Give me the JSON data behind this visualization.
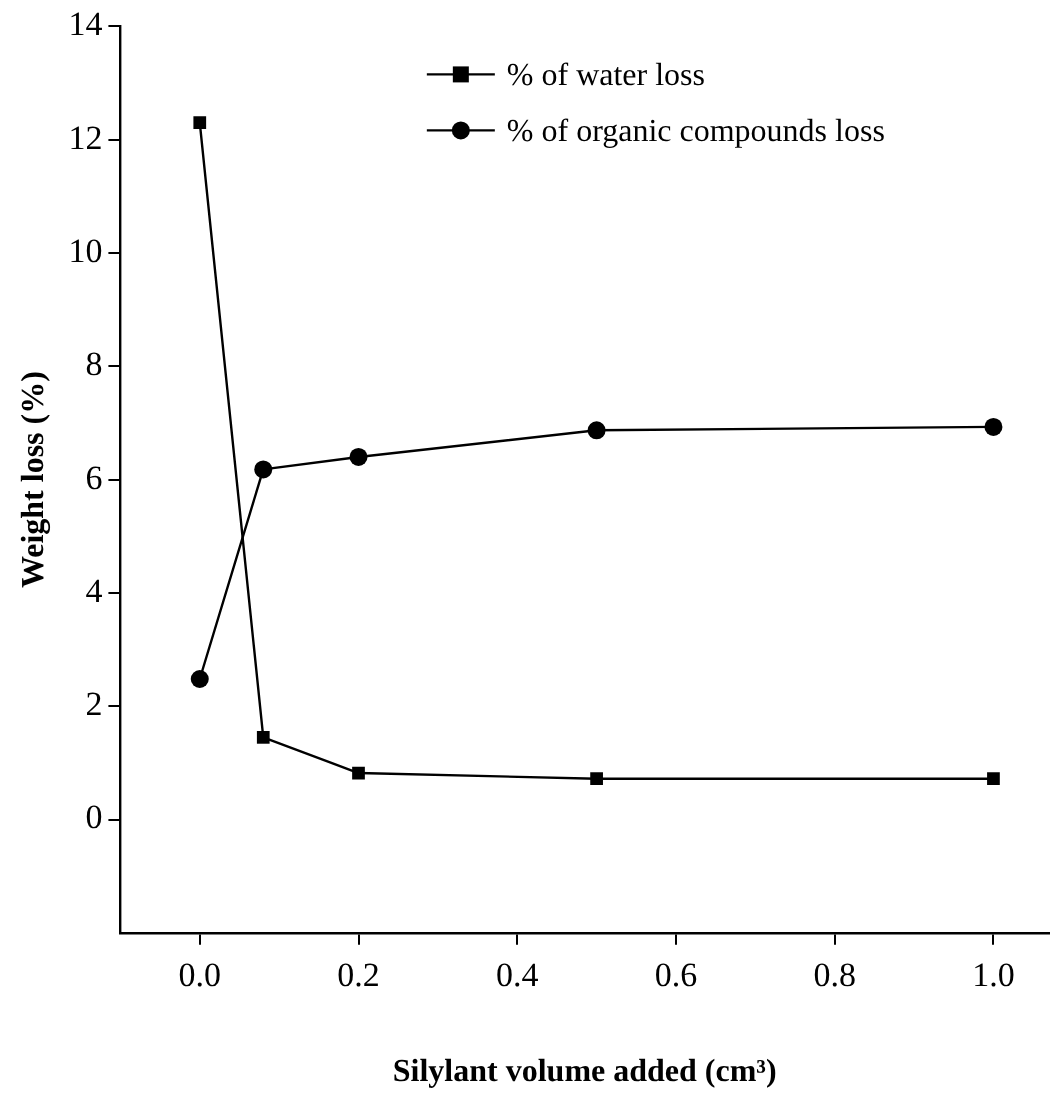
{
  "chart_data": {
    "type": "line",
    "xlabel": "Silylant volume added (cm³)",
    "ylabel": "Weight loss (%)",
    "xlim": [
      -0.1,
      1.07
    ],
    "xticks": [
      {
        "value": 0,
        "label": "0.0"
      },
      {
        "value": 0.2,
        "label": "0.2"
      },
      {
        "value": 0.4,
        "label": "0.4"
      },
      {
        "value": 0.6,
        "label": "0.6"
      },
      {
        "value": 0.8,
        "label": "0.8"
      },
      {
        "value": 1,
        "label": "1.0"
      }
    ],
    "ylim": [
      -2,
      14
    ],
    "yticks": [
      0,
      2,
      4,
      6,
      8,
      10,
      12,
      14
    ],
    "x": [
      0,
      0.08,
      0.2,
      0.5,
      1.0
    ],
    "series": [
      {
        "name": "% of water loss",
        "color": "#000000",
        "marker": "square",
        "values": [
          12.3,
          1.45,
          0.82,
          0.72,
          0.72
        ]
      },
      {
        "name": "% of organic compounds loss",
        "color": "#000000",
        "marker": "circle",
        "values": [
          2.48,
          6.18,
          6.4,
          6.87,
          6.93
        ]
      }
    ],
    "legend": "top",
    "grid": false,
    "line_style": "solid"
  }
}
